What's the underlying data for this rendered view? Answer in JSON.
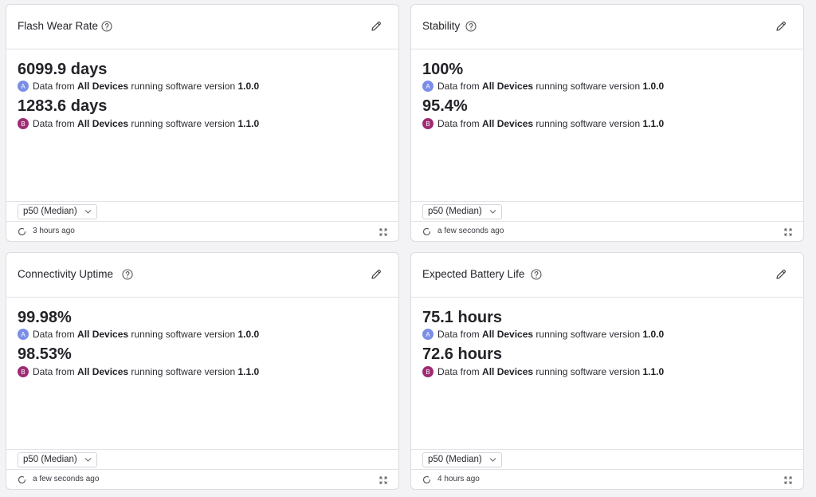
{
  "colors": {
    "badge_a": "#7a8ee8",
    "badge_b": "#9e2c74",
    "background": "#f3f3f5",
    "card": "#ffffff"
  },
  "icons": {
    "help": "help-circle-icon",
    "edit": "pencil-icon",
    "refresh": "refresh-icon",
    "expand": "expand-icon",
    "chevron": "chevron-down-icon"
  },
  "source_text": {
    "prefix": "Data from",
    "devices": "All Devices",
    "middle": "running software version"
  },
  "cards": [
    {
      "title": "Flash Wear Rate",
      "metrics": [
        {
          "badge": "A",
          "value": "6099.9 days",
          "version": "1.0.0"
        },
        {
          "badge": "B",
          "value": "1283.6 days",
          "version": "1.1.0"
        }
      ],
      "percentile": "p50 (Median)",
      "updated": "3 hours ago"
    },
    {
      "title": "Stability",
      "metrics": [
        {
          "badge": "A",
          "value": "100%",
          "version": "1.0.0"
        },
        {
          "badge": "B",
          "value": "95.4%",
          "version": "1.1.0"
        }
      ],
      "percentile": "p50 (Median)",
      "updated": "a few seconds ago"
    },
    {
      "title": "Connectivity Uptime",
      "metrics": [
        {
          "badge": "A",
          "value": "99.98%",
          "version": "1.0.0"
        },
        {
          "badge": "B",
          "value": "98.53%",
          "version": "1.1.0"
        }
      ],
      "percentile": "p50 (Median)",
      "updated": "a few seconds ago"
    },
    {
      "title": "Expected Battery Life",
      "metrics": [
        {
          "badge": "A",
          "value": "75.1 hours",
          "version": "1.0.0"
        },
        {
          "badge": "B",
          "value": "72.6 hours",
          "version": "1.1.0"
        }
      ],
      "percentile": "p50 (Median)",
      "updated": "4 hours ago"
    }
  ]
}
